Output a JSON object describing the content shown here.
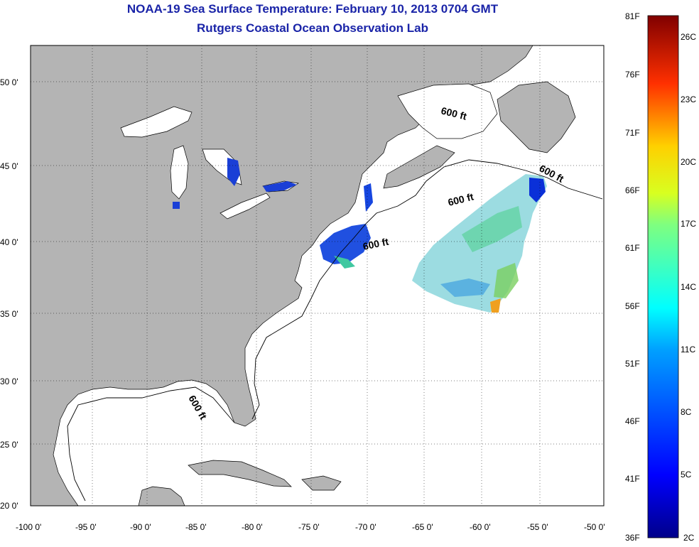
{
  "title": "NOAA-19 Sea Surface Temperature:  February 10, 2013 0704 GMT",
  "subtitle": "Rutgers Coastal Ocean Observation Lab",
  "lat_labels": [
    "50 0'",
    "45 0'",
    "40 0'",
    "35 0'",
    "30 0'",
    "25 0'",
    "20 0'"
  ],
  "lon_labels": [
    "-100 0'",
    "-95 0'",
    "-90 0'",
    "-85 0'",
    "-80 0'",
    "-75 0'",
    "-70 0'",
    "-65 0'",
    "-60 0'",
    "-55 0'",
    "-50 0'"
  ],
  "contour_label": "600 ft",
  "colorbar": {
    "f_labels": [
      "81F",
      "76F",
      "71F",
      "66F",
      "61F",
      "56F",
      "51F",
      "46F",
      "41F",
      "36F"
    ],
    "c_labels": [
      "26C",
      "23C",
      "20C",
      "17C",
      "14C",
      "11C",
      "8C",
      "5C",
      "2C"
    ]
  },
  "colors": {
    "land": "#b4b4b4",
    "ocean": "#ffffff",
    "title": "#1a24a8"
  }
}
